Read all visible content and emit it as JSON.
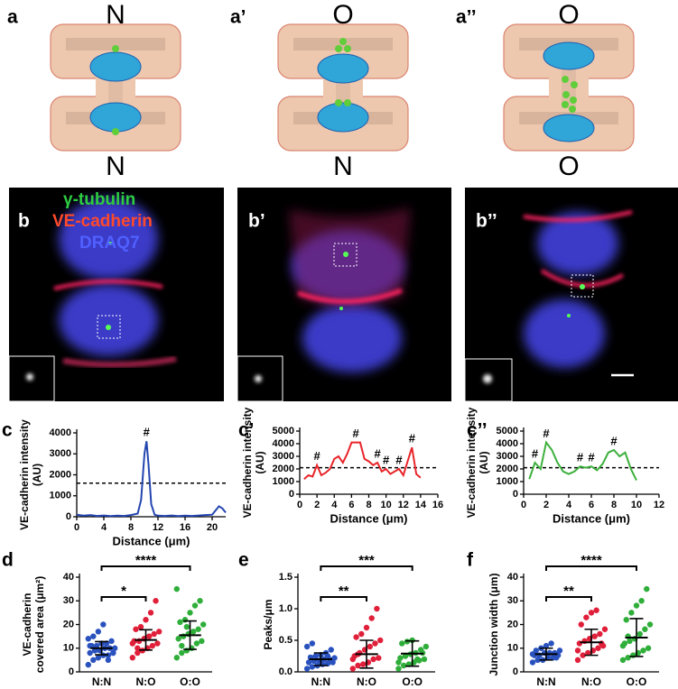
{
  "diagram": {
    "panels": [
      {
        "label": "a",
        "top": "N",
        "bottom": "N"
      },
      {
        "label": "a’",
        "top": "O",
        "bottom": "N"
      },
      {
        "label": "a’’",
        "top": "O",
        "bottom": "O"
      }
    ]
  },
  "micrographs": {
    "panels": [
      {
        "label": "b"
      },
      {
        "label": "b’"
      },
      {
        "label": "b’’"
      }
    ],
    "stain_labels": [
      "γ-tubulin",
      "VE-cadherin",
      "DRAQ7"
    ]
  },
  "chart_data": [
    {
      "type": "line",
      "panel": "c",
      "ylabel": [
        "VE-cadherin intensity",
        "(AU)"
      ],
      "xlabel": "Distance (μm)",
      "color": "#2446b0",
      "x": [
        0,
        1,
        2,
        3,
        4,
        5,
        6,
        7,
        8,
        9,
        9.5,
        10,
        10.3,
        10.6,
        11,
        11.5,
        12,
        13,
        14,
        15,
        16,
        17,
        18,
        19,
        20,
        20.5,
        21,
        21.5,
        22
      ],
      "values": [
        100,
        50,
        80,
        40,
        60,
        30,
        50,
        40,
        80,
        150,
        800,
        3000,
        3600,
        2500,
        600,
        100,
        50,
        40,
        60,
        30,
        50,
        40,
        60,
        80,
        100,
        300,
        500,
        400,
        200
      ],
      "threshold": 1600,
      "annotations": [
        {
          "x": 10.3,
          "y": 3600,
          "text": "#"
        }
      ],
      "xlim": [
        0,
        22
      ],
      "xticks": [
        0,
        4,
        8,
        12,
        16,
        20
      ],
      "ylim": [
        0,
        4000
      ],
      "yticks": [
        0,
        1000,
        2000,
        3000,
        4000
      ]
    },
    {
      "type": "line",
      "panel": "c’",
      "ylabel": [
        "VE-cadherin intensity",
        "(AU)"
      ],
      "xlabel": "Distance (μm)",
      "color": "#e8252a",
      "x": [
        0.5,
        1,
        1.5,
        2,
        2.5,
        3,
        3.5,
        4,
        4.5,
        5,
        5.5,
        6,
        6.5,
        7,
        7.5,
        8,
        8.5,
        9,
        9.5,
        10,
        10.5,
        11,
        11.5,
        12,
        12.5,
        13,
        13.5,
        14
      ],
      "values": [
        1200,
        1500,
        1400,
        2300,
        1500,
        1700,
        2000,
        2800,
        3000,
        2500,
        3200,
        4100,
        4100,
        4100,
        2800,
        2600,
        2300,
        2500,
        1800,
        2000,
        1600,
        1800,
        2000,
        1500,
        2600,
        3700,
        1600,
        1300
      ],
      "threshold": 2100,
      "annotations": [
        {
          "x": 2,
          "y": 2300,
          "text": "#"
        },
        {
          "x": 6.5,
          "y": 4100,
          "text": "#"
        },
        {
          "x": 9,
          "y": 2500,
          "text": "#"
        },
        {
          "x": 10,
          "y": 2000,
          "text": "#"
        },
        {
          "x": 11.5,
          "y": 2000,
          "text": "#"
        },
        {
          "x": 13,
          "y": 3700,
          "text": "#"
        }
      ],
      "xlim": [
        0,
        16
      ],
      "xticks": [
        0,
        2,
        4,
        6,
        8,
        10,
        12,
        14,
        16
      ],
      "ylim": [
        0,
        5000
      ],
      "yticks": [
        0,
        1000,
        2000,
        3000,
        4000,
        5000
      ]
    },
    {
      "type": "line",
      "panel": "c’’",
      "ylabel": [
        "VE-cadherin intensity",
        "(AU)"
      ],
      "xlabel": "Distance (μm)",
      "color": "#3db03d",
      "x": [
        0.5,
        1,
        1.5,
        2,
        2.5,
        3,
        3.5,
        4,
        4.5,
        5,
        5.5,
        6,
        6.5,
        7,
        7.5,
        8,
        8.5,
        9,
        9.5,
        10
      ],
      "values": [
        1200,
        2500,
        2000,
        4100,
        3500,
        2500,
        1800,
        1600,
        1800,
        2200,
        2100,
        2200,
        1900,
        2400,
        3300,
        3500,
        3000,
        3300,
        2000,
        1100
      ],
      "threshold": 2100,
      "annotations": [
        {
          "x": 1,
          "y": 2500,
          "text": "#"
        },
        {
          "x": 2,
          "y": 4100,
          "text": "#"
        },
        {
          "x": 5,
          "y": 2200,
          "text": "#"
        },
        {
          "x": 6,
          "y": 2200,
          "text": "#"
        },
        {
          "x": 8,
          "y": 3500,
          "text": "#"
        }
      ],
      "xlim": [
        0,
        12
      ],
      "xticks": [
        0,
        2,
        4,
        6,
        8,
        10,
        12
      ],
      "ylim": [
        0,
        5000
      ],
      "yticks": [
        0,
        1000,
        2000,
        3000,
        4000,
        5000
      ]
    },
    {
      "type": "strip",
      "panel": "d",
      "ylabel": [
        "VE-cadherin",
        "covered area (μm²)"
      ],
      "series": [
        {
          "name": "N:N",
          "color": "#2a52be",
          "mean": 10,
          "sd": 2.8,
          "values": [
            3,
            5,
            6,
            7,
            7,
            8,
            8,
            9,
            9,
            10,
            10,
            10,
            11,
            11,
            12,
            12,
            13,
            14,
            15,
            17,
            20,
            5,
            8,
            11,
            9
          ]
        },
        {
          "name": "N:O",
          "color": "#e0203a",
          "mean": 13.5,
          "sd": 4.3,
          "values": [
            6,
            8,
            9,
            10,
            11,
            12,
            13,
            13,
            14,
            15,
            16,
            17,
            18,
            19,
            22,
            25,
            30,
            12,
            10
          ]
        },
        {
          "name": "O:O",
          "color": "#2fae3a",
          "mean": 15.5,
          "sd": 6,
          "values": [
            6,
            8,
            9,
            10,
            12,
            13,
            14,
            15,
            16,
            17,
            18,
            20,
            21,
            22,
            25,
            28,
            30,
            35,
            11,
            19
          ]
        }
      ],
      "brackets": [
        {
          "from": 0,
          "to": 1,
          "label": "*"
        },
        {
          "from": 0,
          "to": 2,
          "label": "****"
        }
      ],
      "ylim": [
        0,
        40
      ],
      "yticks": [
        0,
        10,
        20,
        30,
        40
      ]
    },
    {
      "type": "strip",
      "panel": "e",
      "ylabel": [
        "Peaks/μm"
      ],
      "series": [
        {
          "name": "N:N",
          "color": "#2a52be",
          "mean": 0.2,
          "sd": 0.1,
          "values": [
            0.05,
            0.08,
            0.1,
            0.12,
            0.13,
            0.15,
            0.15,
            0.17,
            0.18,
            0.2,
            0.2,
            0.22,
            0.23,
            0.25,
            0.27,
            0.3,
            0.35,
            0.4,
            0.45,
            0.1,
            0.18,
            0.25
          ]
        },
        {
          "name": "N:O",
          "color": "#e0203a",
          "mean": 0.28,
          "sd": 0.22,
          "values": [
            0.05,
            0.1,
            0.12,
            0.15,
            0.2,
            0.22,
            0.25,
            0.3,
            0.35,
            0.4,
            0.45,
            0.5,
            0.55,
            0.6,
            0.7,
            0.85,
            1.0,
            0.2,
            0.28
          ]
        },
        {
          "name": "O:O",
          "color": "#2fae3a",
          "mean": 0.29,
          "sd": 0.2,
          "values": [
            0.05,
            0.1,
            0.12,
            0.15,
            0.18,
            0.2,
            0.22,
            0.25,
            0.28,
            0.3,
            0.35,
            0.4,
            0.45,
            0.48,
            0.5,
            0.2,
            0.3,
            0.15
          ]
        }
      ],
      "brackets": [
        {
          "from": 0,
          "to": 1,
          "label": "**"
        },
        {
          "from": 0,
          "to": 2,
          "label": "***"
        }
      ],
      "ylim": [
        0,
        1.5
      ],
      "yticks": [
        {
          "value": 0,
          "label": "0.0"
        },
        0.5,
        {
          "value": 1,
          "label": "1.0"
        },
        1.5
      ]
    },
    {
      "type": "strip",
      "panel": "f",
      "ylabel": [
        "Junction width  (μm)"
      ],
      "series": [
        {
          "name": "N:N",
          "color": "#2a52be",
          "mean": 7.5,
          "sd": 2.5,
          "values": [
            4,
            5,
            5,
            6,
            6,
            7,
            7,
            7,
            8,
            8,
            8,
            9,
            9,
            10,
            11,
            12,
            6,
            7.5
          ]
        },
        {
          "name": "N:O",
          "color": "#e0203a",
          "mean": 12.5,
          "sd": 5.5,
          "values": [
            5,
            7,
            8,
            9,
            10,
            11,
            12,
            13,
            14,
            15,
            16,
            18,
            20,
            23,
            25,
            26,
            12,
            9
          ]
        },
        {
          "name": "O:O",
          "color": "#2fae3a",
          "mean": 14.5,
          "sd": 8,
          "values": [
            5,
            6,
            7,
            8,
            9,
            10,
            12,
            13,
            14,
            16,
            18,
            20,
            22,
            25,
            28,
            30,
            35,
            11,
            15
          ]
        }
      ],
      "brackets": [
        {
          "from": 0,
          "to": 1,
          "label": "**"
        },
        {
          "from": 0,
          "to": 2,
          "label": "****"
        }
      ],
      "ylim": [
        0,
        40
      ],
      "yticks": [
        0,
        10,
        20,
        30,
        40
      ]
    }
  ]
}
